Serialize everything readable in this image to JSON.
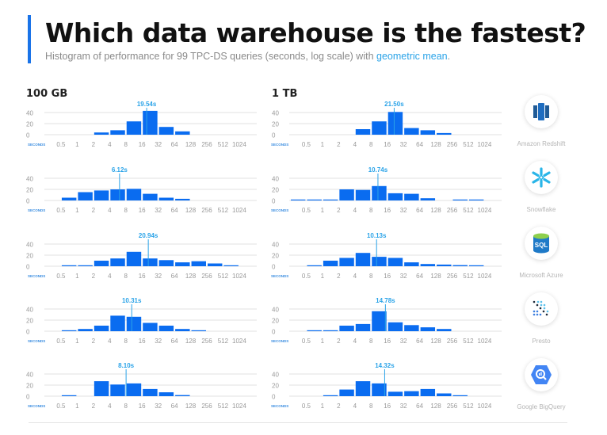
{
  "header": {
    "title": "Which data warehouse is the fastest?",
    "subtitle_prefix": "Histogram of performance for 99 TPC-DS queries (seconds, log scale) with ",
    "subtitle_highlight": "geometric mean",
    "subtitle_suffix": "."
  },
  "columns": [
    "100 GB",
    "1 TB"
  ],
  "warehouses": [
    {
      "name": "Amazon Redshift",
      "icon": "redshift-logo-icon"
    },
    {
      "name": "Snowflake",
      "icon": "snowflake-logo-icon"
    },
    {
      "name": "Microsoft Azure",
      "icon": "azure-sql-logo-icon"
    },
    {
      "name": "Presto",
      "icon": "presto-logo-icon"
    },
    {
      "name": "Google BigQuery",
      "icon": "bigquery-logo-icon"
    }
  ],
  "colors": {
    "bar": "#0a6cf0",
    "mean": "#2aa3e8",
    "accent": "#1a73e8",
    "grid": "#e2e2e2"
  },
  "chart_data": {
    "type": "bar",
    "x_scale": "log2",
    "xlabel": "SECONDS",
    "x_ticks": [
      "0.5",
      "1",
      "2",
      "4",
      "8",
      "16",
      "32",
      "64",
      "128",
      "256",
      "512",
      "1024"
    ],
    "bin_edges": [
      0.25,
      0.5,
      1,
      2,
      4,
      8,
      16,
      32,
      64,
      128,
      256,
      512,
      1024
    ],
    "y_ticks": [
      "0",
      "20",
      "40"
    ],
    "ylim": [
      0,
      45
    ],
    "grid": true,
    "panels": [
      {
        "column": "100 GB",
        "warehouse": "Amazon Redshift",
        "mean": 19.54,
        "mean_label": "19.54s",
        "values": [
          0,
          0,
          0,
          4,
          8,
          24,
          43,
          14,
          6,
          0,
          0,
          0
        ]
      },
      {
        "column": "1 TB",
        "warehouse": "Amazon Redshift",
        "mean": 21.5,
        "mean_label": "21.50s",
        "values": [
          0,
          0,
          0,
          0,
          10,
          24,
          41,
          12,
          8,
          3,
          0,
          0
        ]
      },
      {
        "column": "100 GB",
        "warehouse": "Snowflake",
        "mean": 6.12,
        "mean_label": "6.12s",
        "values": [
          0,
          5,
          15,
          18,
          20,
          21,
          12,
          5,
          3,
          0,
          0,
          0
        ]
      },
      {
        "column": "1 TB",
        "warehouse": "Snowflake",
        "mean": 10.74,
        "mean_label": "10.74s",
        "values": [
          1,
          1,
          1,
          20,
          19,
          26,
          13,
          12,
          4,
          0,
          1,
          1
        ]
      },
      {
        "column": "100 GB",
        "warehouse": "Microsoft Azure",
        "mean": 20.94,
        "mean_label": "20.94s",
        "values": [
          0,
          1,
          1,
          10,
          14,
          26,
          14,
          11,
          7,
          9,
          5,
          1
        ]
      },
      {
        "column": "1 TB",
        "warehouse": "Microsoft Azure",
        "mean": 10.13,
        "mean_label": "10.13s",
        "values": [
          0,
          1,
          10,
          15,
          24,
          17,
          15,
          7,
          4,
          3,
          2,
          1
        ]
      },
      {
        "column": "100 GB",
        "warehouse": "Presto",
        "mean": 10.31,
        "mean_label": "10.31s",
        "values": [
          0,
          1,
          4,
          10,
          28,
          26,
          15,
          10,
          4,
          1,
          0,
          0
        ]
      },
      {
        "column": "1 TB",
        "warehouse": "Presto",
        "mean": 14.78,
        "mean_label": "14.78s",
        "values": [
          0,
          1,
          1,
          10,
          13,
          36,
          16,
          11,
          7,
          4,
          0,
          0
        ]
      },
      {
        "column": "100 GB",
        "warehouse": "Google BigQuery",
        "mean": 8.1,
        "mean_label": "8.10s",
        "values": [
          0,
          1,
          0,
          27,
          21,
          23,
          13,
          7,
          2,
          0,
          0,
          0
        ]
      },
      {
        "column": "1 TB",
        "warehouse": "Google BigQuery",
        "mean": 14.32,
        "mean_label": "14.32s",
        "values": [
          0,
          0,
          1,
          12,
          27,
          23,
          8,
          9,
          13,
          5,
          1,
          0
        ]
      }
    ]
  }
}
